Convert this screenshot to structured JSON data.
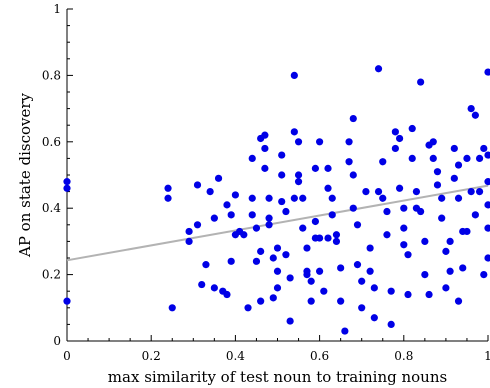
{
  "chart_data": {
    "type": "scatter",
    "xlabel": "max similarity of test noun to training nouns",
    "ylabel": "AP on state discovery",
    "xlim": [
      0,
      1
    ],
    "ylim": [
      0,
      1
    ],
    "x_major_ticks": [
      0,
      0.2,
      0.4,
      0.6,
      0.8,
      1
    ],
    "x_tick_labels": [
      "0",
      "0.2",
      "0.4",
      "0.6",
      "0.8",
      "1"
    ],
    "y_major_ticks": [
      0,
      0.2,
      0.4,
      0.6,
      0.8,
      1
    ],
    "y_tick_labels": [
      "0",
      "0.2",
      "0.4",
      "0.6",
      "0.8",
      "1"
    ],
    "grid": false,
    "point_color": "#0000e6",
    "trendline": {
      "color": "#b3b3b3",
      "x": [
        0,
        1
      ],
      "y": [
        0.243,
        0.468
      ]
    },
    "points": [
      [
        0.0,
        0.48
      ],
      [
        0.0,
        0.46
      ],
      [
        0.0,
        0.12
      ],
      [
        0.24,
        0.46
      ],
      [
        0.24,
        0.43
      ],
      [
        0.25,
        0.1
      ],
      [
        0.29,
        0.33
      ],
      [
        0.29,
        0.3
      ],
      [
        0.31,
        0.47
      ],
      [
        0.31,
        0.35
      ],
      [
        0.32,
        0.17
      ],
      [
        0.33,
        0.23
      ],
      [
        0.34,
        0.45
      ],
      [
        0.35,
        0.16
      ],
      [
        0.36,
        0.49
      ],
      [
        0.37,
        0.15
      ],
      [
        0.38,
        0.41
      ],
      [
        0.38,
        0.14
      ],
      [
        0.39,
        0.38
      ],
      [
        0.39,
        0.24
      ],
      [
        0.4,
        0.44
      ],
      [
        0.4,
        0.32
      ],
      [
        0.41,
        0.33
      ],
      [
        0.42,
        0.32
      ],
      [
        0.43,
        0.1
      ],
      [
        0.44,
        0.43
      ],
      [
        0.44,
        0.38
      ],
      [
        0.45,
        0.34
      ],
      [
        0.45,
        0.24
      ],
      [
        0.46,
        0.27
      ],
      [
        0.46,
        0.12
      ],
      [
        0.46,
        0.61
      ],
      [
        0.47,
        0.62
      ],
      [
        0.47,
        0.58
      ],
      [
        0.47,
        0.52
      ],
      [
        0.48,
        0.43
      ],
      [
        0.48,
        0.37
      ],
      [
        0.48,
        0.35
      ],
      [
        0.49,
        0.25
      ],
      [
        0.49,
        0.13
      ],
      [
        0.5,
        0.28
      ],
      [
        0.5,
        0.21
      ],
      [
        0.5,
        0.16
      ],
      [
        0.51,
        0.56
      ],
      [
        0.51,
        0.5
      ],
      [
        0.51,
        0.42
      ],
      [
        0.52,
        0.39
      ],
      [
        0.52,
        0.26
      ],
      [
        0.53,
        0.06
      ],
      [
        0.53,
        0.19
      ],
      [
        0.54,
        0.43
      ],
      [
        0.54,
        0.63
      ],
      [
        0.55,
        0.6
      ],
      [
        0.55,
        0.5
      ],
      [
        0.55,
        0.48
      ],
      [
        0.56,
        0.43
      ],
      [
        0.56,
        0.34
      ],
      [
        0.57,
        0.28
      ],
      [
        0.57,
        0.2
      ],
      [
        0.58,
        0.18
      ],
      [
        0.58,
        0.12
      ],
      [
        0.59,
        0.52
      ],
      [
        0.59,
        0.36
      ],
      [
        0.59,
        0.31
      ],
      [
        0.6,
        0.6
      ],
      [
        0.6,
        0.31
      ],
      [
        0.6,
        0.21
      ],
      [
        0.61,
        0.15
      ],
      [
        0.62,
        0.52
      ],
      [
        0.62,
        0.46
      ],
      [
        0.63,
        0.43
      ],
      [
        0.63,
        0.38
      ],
      [
        0.64,
        0.32
      ],
      [
        0.64,
        0.3
      ],
      [
        0.65,
        0.22
      ],
      [
        0.65,
        0.12
      ],
      [
        0.66,
        0.03
      ],
      [
        0.67,
        0.6
      ],
      [
        0.67,
        0.54
      ],
      [
        0.68,
        0.5
      ],
      [
        0.68,
        0.4
      ],
      [
        0.69,
        0.35
      ],
      [
        0.69,
        0.23
      ],
      [
        0.7,
        0.18
      ],
      [
        0.7,
        0.1
      ],
      [
        0.71,
        0.45
      ],
      [
        0.72,
        0.28
      ],
      [
        0.72,
        0.21
      ],
      [
        0.73,
        0.16
      ],
      [
        0.73,
        0.07
      ],
      [
        0.74,
        0.82
      ],
      [
        0.75,
        0.54
      ],
      [
        0.75,
        0.43
      ],
      [
        0.76,
        0.39
      ],
      [
        0.76,
        0.32
      ],
      [
        0.77,
        0.15
      ],
      [
        0.77,
        0.05
      ],
      [
        0.78,
        0.63
      ],
      [
        0.78,
        0.58
      ],
      [
        0.79,
        0.61
      ],
      [
        0.79,
        0.46
      ],
      [
        0.8,
        0.34
      ],
      [
        0.8,
        0.29
      ],
      [
        0.81,
        0.26
      ],
      [
        0.81,
        0.14
      ],
      [
        0.82,
        0.64
      ],
      [
        0.82,
        0.55
      ],
      [
        0.83,
        0.45
      ],
      [
        0.83,
        0.4
      ],
      [
        0.84,
        0.78
      ],
      [
        0.84,
        0.39
      ],
      [
        0.85,
        0.3
      ],
      [
        0.85,
        0.2
      ],
      [
        0.86,
        0.14
      ],
      [
        0.87,
        0.6
      ],
      [
        0.87,
        0.55
      ],
      [
        0.88,
        0.51
      ],
      [
        0.88,
        0.47
      ],
      [
        0.89,
        0.43
      ],
      [
        0.89,
        0.37
      ],
      [
        0.9,
        0.27
      ],
      [
        0.9,
        0.16
      ],
      [
        0.91,
        0.21
      ],
      [
        0.91,
        0.3
      ],
      [
        0.92,
        0.58
      ],
      [
        0.92,
        0.49
      ],
      [
        0.93,
        0.53
      ],
      [
        0.93,
        0.43
      ],
      [
        0.93,
        0.12
      ],
      [
        0.94,
        0.33
      ],
      [
        0.94,
        0.22
      ],
      [
        0.95,
        0.55
      ],
      [
        0.95,
        0.33
      ],
      [
        0.96,
        0.7
      ],
      [
        0.96,
        0.45
      ],
      [
        0.97,
        0.68
      ],
      [
        0.97,
        0.38
      ],
      [
        0.98,
        0.55
      ],
      [
        0.98,
        0.45
      ],
      [
        0.99,
        0.58
      ],
      [
        0.99,
        0.2
      ],
      [
        1.0,
        0.81
      ],
      [
        1.0,
        0.56
      ],
      [
        1.0,
        0.48
      ],
      [
        1.0,
        0.41
      ],
      [
        1.0,
        0.34
      ],
      [
        1.0,
        0.25
      ],
      [
        0.54,
        0.8
      ],
      [
        0.57,
        0.21
      ],
      [
        0.44,
        0.55
      ],
      [
        0.86,
        0.59
      ],
      [
        0.68,
        0.67
      ],
      [
        0.35,
        0.37
      ],
      [
        0.62,
        0.31
      ],
      [
        0.74,
        0.45
      ],
      [
        0.8,
        0.4
      ]
    ]
  }
}
